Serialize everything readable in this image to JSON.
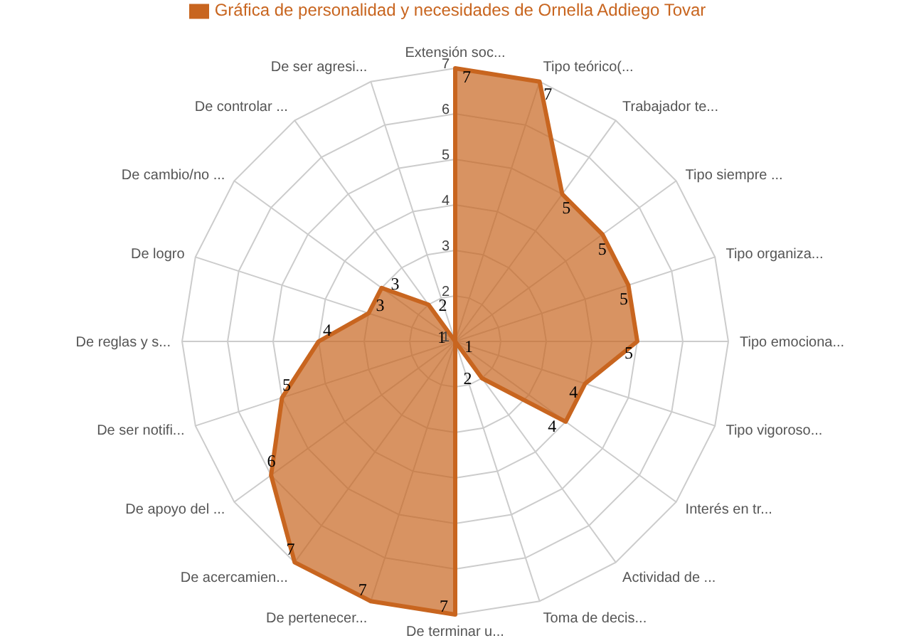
{
  "chart_data": {
    "type": "radar",
    "categories": [
      "Extensión soc...",
      "Tipo teórico(...",
      "Trabajador te...",
      "Tipo siempre ...",
      "Tipo organiza...",
      "Tipo emociona...",
      "Tipo vigoroso...",
      "Interés en tr...",
      "Actividad de ...",
      "Toma de decis...",
      "De terminar u...",
      "De pertenecer...",
      "De acercamien...",
      "De apoyo del ...",
      "De ser notifi...",
      "De reglas y s...",
      "De logro",
      "De cambio/no ...",
      "De controlar ...",
      "De ser agresi..."
    ],
    "series": [
      {
        "name": "Gráfica de personalidad y necesidades de Ornella Addiego Tovar",
        "color": "#c8651f",
        "values": [
          7,
          7,
          5,
          5,
          5,
          5,
          4,
          4,
          2,
          1,
          7,
          7,
          7,
          6,
          5,
          4,
          3,
          3,
          2,
          1
        ]
      }
    ],
    "ylim": [
      1,
      7
    ],
    "yticks": [
      1,
      2,
      3,
      4,
      5,
      6,
      7
    ],
    "data_labels": true,
    "grid": true,
    "legend": "top"
  }
}
